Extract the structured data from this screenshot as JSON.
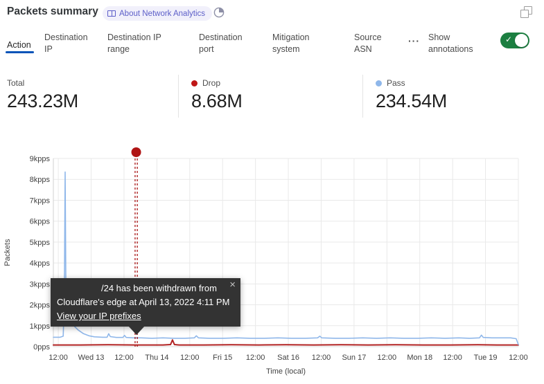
{
  "header": {
    "title": "Packets summary",
    "badge_label": "About Network Analytics",
    "accent_color": "#5c5ec8"
  },
  "tabs": {
    "items": [
      {
        "label": "Action",
        "active": true
      },
      {
        "label": "Destination IP",
        "active": false
      },
      {
        "label": "Destination IP range",
        "active": false
      },
      {
        "label": "Destination port",
        "active": false
      },
      {
        "label": "Mitigation system",
        "active": false
      },
      {
        "label": "Source ASN",
        "active": false
      }
    ],
    "more_label": "···",
    "active_underline_color": "#0553b8"
  },
  "annotations_control": {
    "label": "Show annotations",
    "toggle_state": "on",
    "toggle_color": "#1c7f41",
    "check_glyph": "✓"
  },
  "stats": [
    {
      "label": "Total",
      "value": "243.23M",
      "dot_color": null
    },
    {
      "label": "Drop",
      "value": "8.68M",
      "dot_color": "#bf1616"
    },
    {
      "label": "Pass",
      "value": "234.54M",
      "dot_color": "#8fb7ea"
    }
  ],
  "tooltip": {
    "line1": "/24 has been withdrawn from",
    "line2": "Cloudflare's edge at April 13, 2022 4:11 PM",
    "link": "View your IP prefixes",
    "close_glyph": "×"
  },
  "chart_data": {
    "type": "line",
    "xlabel": "Time (local)",
    "ylabel": "Packets",
    "ylim": [
      0,
      9
    ],
    "xlim_hours": [
      0,
      169.8
    ],
    "grid": true,
    "y_ticks": [
      {
        "v": 9,
        "label": "9kpps"
      },
      {
        "v": 8,
        "label": "8kpps"
      },
      {
        "v": 7,
        "label": "7kpps"
      },
      {
        "v": 6,
        "label": "6kpps"
      },
      {
        "v": 5,
        "label": "5kpps"
      },
      {
        "v": 4,
        "label": "4kpps"
      },
      {
        "v": 3,
        "label": "3kpps"
      },
      {
        "v": 2,
        "label": "2kpps"
      },
      {
        "v": 1,
        "label": "1kpps"
      },
      {
        "v": 0,
        "label": "0pps"
      }
    ],
    "x_ticks": [
      {
        "hour": 1.8,
        "label": "12:00"
      },
      {
        "hour": 13.8,
        "label": "Wed 13"
      },
      {
        "hour": 25.8,
        "label": "12:00"
      },
      {
        "hour": 37.8,
        "label": "Thu 14"
      },
      {
        "hour": 49.8,
        "label": "12:00"
      },
      {
        "hour": 61.8,
        "label": "Fri 15"
      },
      {
        "hour": 73.8,
        "label": "12:00"
      },
      {
        "hour": 85.8,
        "label": "Sat 16"
      },
      {
        "hour": 97.8,
        "label": "12:00"
      },
      {
        "hour": 109.8,
        "label": "Sun 17"
      },
      {
        "hour": 121.8,
        "label": "12:00"
      },
      {
        "hour": 133.8,
        "label": "Mon 18"
      },
      {
        "hour": 145.8,
        "label": "12:00"
      },
      {
        "hour": 157.8,
        "label": "Tue 19"
      },
      {
        "hour": 169.8,
        "label": "12:00"
      }
    ],
    "series": [
      {
        "name": "Drop",
        "color": "#b12121",
        "width": 2,
        "points": [
          [
            0,
            0.08
          ],
          [
            10,
            0.08
          ],
          [
            20,
            0.09
          ],
          [
            30,
            0.08
          ],
          [
            40,
            0.08
          ],
          [
            42.8,
            0.1
          ],
          [
            43.5,
            0.32
          ],
          [
            44.2,
            0.1
          ],
          [
            46,
            0.08
          ],
          [
            55,
            0.08
          ],
          [
            65,
            0.09
          ],
          [
            75,
            0.08
          ],
          [
            85,
            0.09
          ],
          [
            95,
            0.08
          ],
          [
            105,
            0.09
          ],
          [
            115,
            0.08
          ],
          [
            125,
            0.09
          ],
          [
            135,
            0.08
          ],
          [
            145,
            0.08
          ],
          [
            155,
            0.09
          ],
          [
            162,
            0.08
          ],
          [
            169.8,
            0.08
          ]
        ]
      },
      {
        "name": "Pass",
        "color": "#8fb7ea",
        "width": 1.6,
        "points": [
          [
            0,
            0.45
          ],
          [
            2.5,
            0.45
          ],
          [
            3.6,
            0.5
          ],
          [
            4.0,
            2.2
          ],
          [
            4.3,
            8.35
          ],
          [
            4.6,
            2.2
          ],
          [
            5.0,
            1.55
          ],
          [
            6.0,
            1.3
          ],
          [
            7.5,
            1.0
          ],
          [
            9,
            0.8
          ],
          [
            11,
            0.62
          ],
          [
            13,
            0.52
          ],
          [
            15,
            0.47
          ],
          [
            18,
            0.45
          ],
          [
            19.6,
            0.45
          ],
          [
            20.2,
            0.62
          ],
          [
            20.8,
            0.48
          ],
          [
            23,
            0.44
          ],
          [
            25.4,
            0.44
          ],
          [
            26,
            0.54
          ],
          [
            26.6,
            0.44
          ],
          [
            29,
            0.42
          ],
          [
            32,
            0.42
          ],
          [
            36,
            0.4
          ],
          [
            40,
            0.42
          ],
          [
            44,
            0.4
          ],
          [
            48,
            0.4
          ],
          [
            51.5,
            0.42
          ],
          [
            52.2,
            0.52
          ],
          [
            53,
            0.42
          ],
          [
            57,
            0.4
          ],
          [
            62,
            0.4
          ],
          [
            67,
            0.42
          ],
          [
            72,
            0.4
          ],
          [
            77,
            0.4
          ],
          [
            82,
            0.42
          ],
          [
            87,
            0.4
          ],
          [
            92,
            0.4
          ],
          [
            96.5,
            0.42
          ],
          [
            97.3,
            0.5
          ],
          [
            98,
            0.42
          ],
          [
            103,
            0.4
          ],
          [
            108,
            0.4
          ],
          [
            113,
            0.42
          ],
          [
            118,
            0.4
          ],
          [
            123,
            0.42
          ],
          [
            128,
            0.4
          ],
          [
            133,
            0.4
          ],
          [
            138,
            0.42
          ],
          [
            143,
            0.4
          ],
          [
            148,
            0.42
          ],
          [
            152,
            0.4
          ],
          [
            155.6,
            0.42
          ],
          [
            156.3,
            0.55
          ],
          [
            157,
            0.44
          ],
          [
            160,
            0.42
          ],
          [
            164,
            0.42
          ],
          [
            167,
            0.42
          ],
          [
            169,
            0.38
          ],
          [
            169.8,
            0.1
          ]
        ]
      }
    ],
    "annotation": {
      "hour": 30.25,
      "color": "#a81414",
      "marker": "dot-with-dashed-line"
    }
  }
}
